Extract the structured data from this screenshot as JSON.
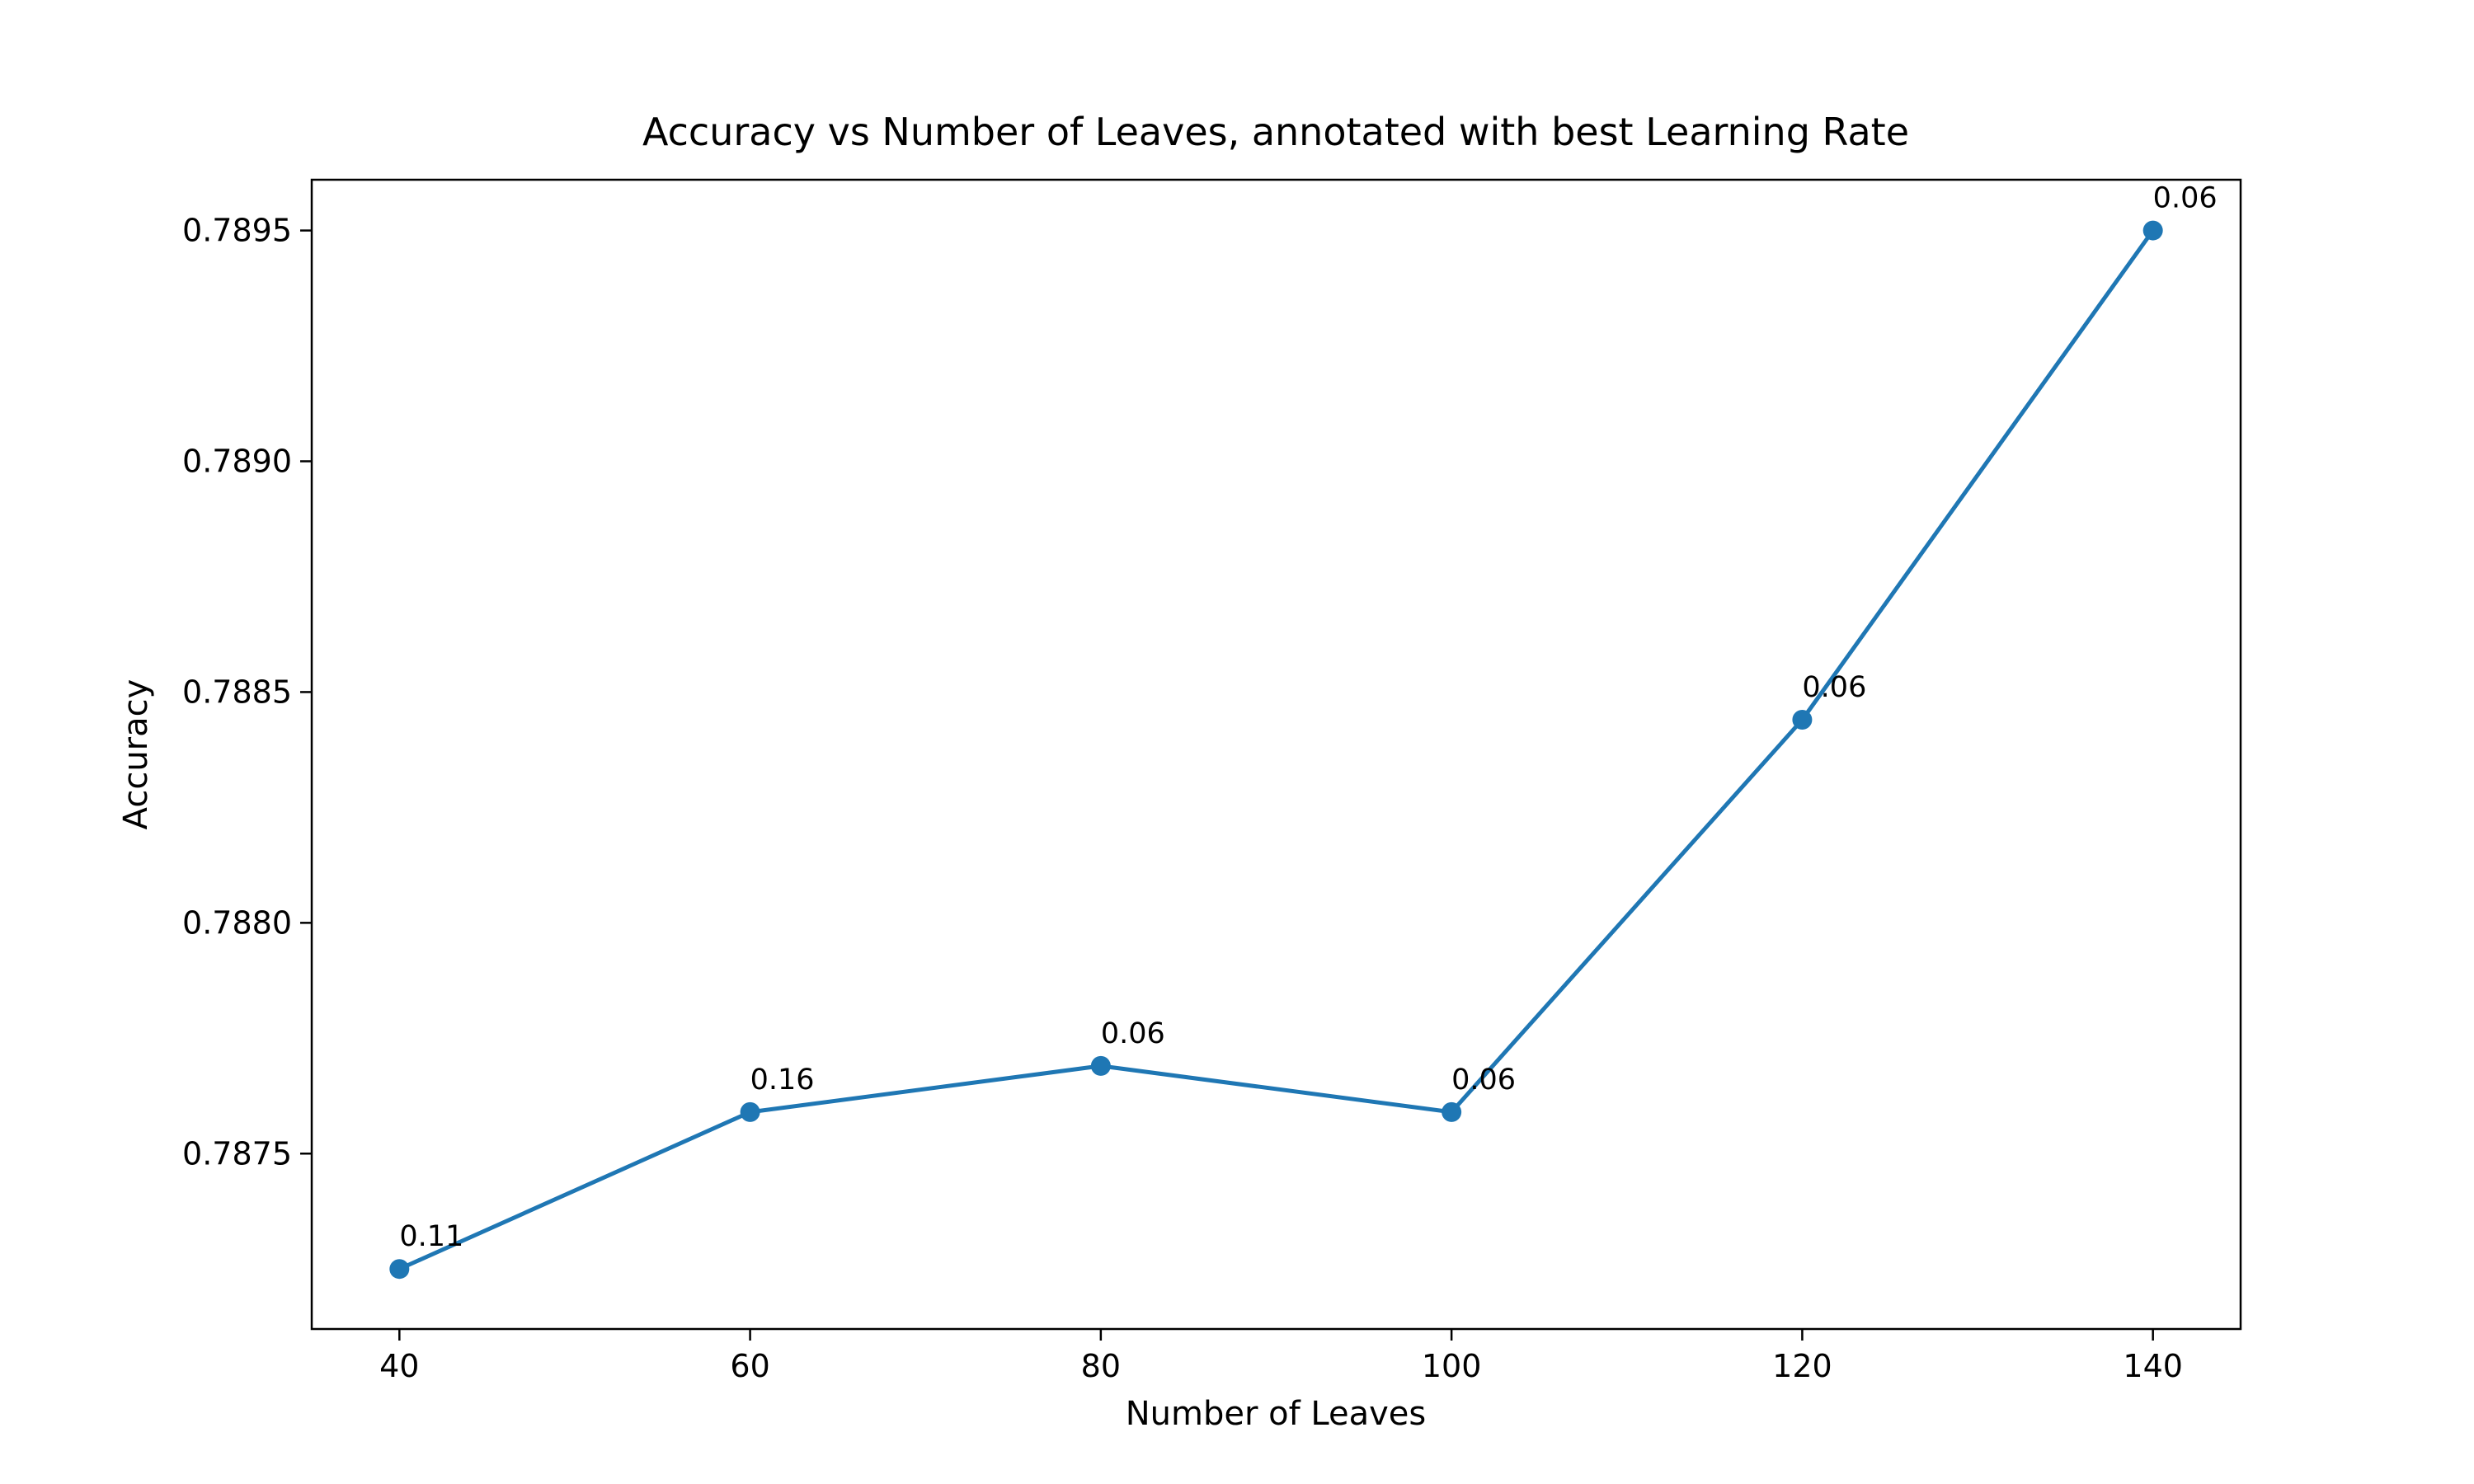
{
  "chart_data": {
    "type": "line",
    "title": "Accuracy vs Number of Leaves, annotated with best Learning Rate",
    "xlabel": "Number of Leaves",
    "ylabel": "Accuracy",
    "x": [
      40,
      60,
      80,
      100,
      120,
      140
    ],
    "y": [
      0.78725,
      0.78759,
      0.78769,
      0.78759,
      0.78844,
      0.7895
    ],
    "annotations": [
      "0.11",
      "0.16",
      "0.06",
      "0.06",
      "0.06",
      "0.06"
    ],
    "xlim": [
      35,
      145
    ],
    "ylim": [
      0.78712,
      0.78961
    ],
    "xticks": [
      40,
      60,
      80,
      100,
      120,
      140
    ],
    "xtick_labels": [
      "40",
      "60",
      "80",
      "100",
      "120",
      "140"
    ],
    "yticks": [
      0.7875,
      0.788,
      0.7885,
      0.789,
      0.7895
    ],
    "ytick_labels": [
      "0.7875",
      "0.7880",
      "0.7885",
      "0.7890",
      "0.7895"
    ],
    "grid": false,
    "line_color": "#1f77b4",
    "marker": "circle"
  }
}
